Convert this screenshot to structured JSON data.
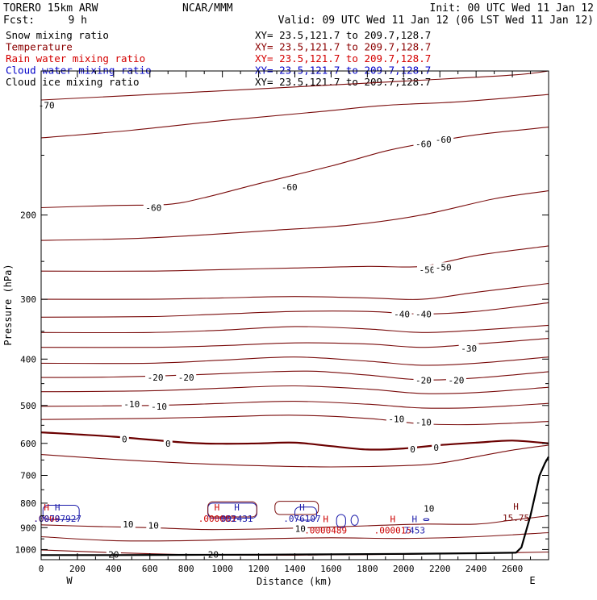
{
  "header": {
    "model": "TORERO  15km ARW",
    "center": "NCAR/MMM",
    "init": "Init: 00 UTC Wed 11 Jan 12",
    "fcst_label": "Fcst:",
    "fcst_value": "9 h",
    "valid": "Valid: 09 UTC Wed 11 Jan 12 (06 LST Wed 11 Jan 12)"
  },
  "legend": [
    {
      "name": "Snow mixing ratio",
      "xy": "XY=  23.5,121.7 to 209.7,128.7",
      "color": "#000000"
    },
    {
      "name": "Temperature",
      "xy": "XY=  23.5,121.7 to 209.7,128.7",
      "color": "#8b0000"
    },
    {
      "name": "Rain water mixing ratio",
      "xy": "XY=  23.5,121.7 to 209.7,128.7",
      "color": "#d40000"
    },
    {
      "name": "Cloud water mixing ratio",
      "xy": "XY=  23.5,121.7 to 209.7,128.7",
      "color": "#0000c8"
    },
    {
      "name": "Cloud ice mixing ratio",
      "xy": "XY=  23.5,121.7 to 209.7,128.7",
      "color": "#000000"
    }
  ],
  "colors": {
    "temperature": "#7a0c0c",
    "temperature_zero": "#6b0000",
    "rain": "#cc0000",
    "cloud_water": "#1a1aaa",
    "terrain": "#000000"
  },
  "chart_data": {
    "type": "contour_cross_section",
    "xlabel": "Distance (km)",
    "ylabel": "Pressure (hPa)",
    "xlim": [
      0,
      2800
    ],
    "ylim": [
      1050,
      100
    ],
    "x_ticks": [
      0,
      200,
      400,
      600,
      800,
      1000,
      1200,
      1400,
      1600,
      1800,
      2000,
      2200,
      2400,
      2600
    ],
    "y_ticks": [
      200,
      300,
      400,
      500,
      600,
      700,
      800,
      900,
      1000
    ],
    "endpoints": {
      "left": "W",
      "right": "E"
    },
    "temperature_contours": [
      {
        "level": -70,
        "points": [
          [
            0,
            115
          ],
          [
            600,
            112
          ],
          [
            1400,
            108
          ],
          [
            2000,
            105
          ],
          [
            2600,
            102
          ],
          [
            2800,
            100
          ]
        ]
      },
      {
        "level": -65,
        "points": [
          [
            0,
            138
          ],
          [
            500,
            133
          ],
          [
            1000,
            127
          ],
          [
            1500,
            122
          ],
          [
            1900,
            118
          ],
          [
            2300,
            116
          ],
          [
            2800,
            112
          ]
        ]
      },
      {
        "level": -60,
        "points": [
          [
            0,
            193
          ],
          [
            400,
            191
          ],
          [
            700,
            190
          ],
          [
            900,
            184
          ],
          [
            1200,
            172
          ],
          [
            1600,
            158
          ],
          [
            1900,
            147
          ],
          [
            2100,
            142
          ],
          [
            2400,
            136
          ],
          [
            2800,
            131
          ]
        ]
      },
      {
        "level": -55,
        "points": [
          [
            0,
            226
          ],
          [
            500,
            224
          ],
          [
            900,
            220
          ],
          [
            1300,
            215
          ],
          [
            1700,
            210
          ],
          [
            2100,
            200
          ],
          [
            2500,
            185
          ],
          [
            2800,
            178
          ]
        ]
      },
      {
        "level": -50,
        "points": [
          [
            0,
            262
          ],
          [
            600,
            262
          ],
          [
            1000,
            260
          ],
          [
            1400,
            258
          ],
          [
            1800,
            256
          ],
          [
            2100,
            256
          ],
          [
            2400,
            243
          ],
          [
            2800,
            232
          ]
        ]
      },
      {
        "level": -45,
        "points": [
          [
            0,
            300
          ],
          [
            600,
            300
          ],
          [
            1000,
            298
          ],
          [
            1400,
            296
          ],
          [
            1800,
            298
          ],
          [
            2100,
            300
          ],
          [
            2400,
            290
          ],
          [
            2800,
            278
          ]
        ]
      },
      {
        "level": -40,
        "points": [
          [
            0,
            327
          ],
          [
            600,
            326
          ],
          [
            1000,
            322
          ],
          [
            1400,
            318
          ],
          [
            1800,
            318
          ],
          [
            2100,
            322
          ],
          [
            2400,
            318
          ],
          [
            2800,
            305
          ]
        ]
      },
      {
        "level": -35,
        "points": [
          [
            0,
            352
          ],
          [
            600,
            352
          ],
          [
            1000,
            348
          ],
          [
            1400,
            342
          ],
          [
            1800,
            346
          ],
          [
            2100,
            352
          ],
          [
            2400,
            348
          ],
          [
            2800,
            340
          ]
        ]
      },
      {
        "level": -30,
        "points": [
          [
            0,
            378
          ],
          [
            600,
            378
          ],
          [
            1000,
            375
          ],
          [
            1400,
            370
          ],
          [
            1800,
            372
          ],
          [
            2100,
            378
          ],
          [
            2400,
            372
          ],
          [
            2800,
            362
          ]
        ]
      },
      {
        "level": -25,
        "points": [
          [
            0,
            408
          ],
          [
            600,
            408
          ],
          [
            1000,
            402
          ],
          [
            1400,
            396
          ],
          [
            1800,
            404
          ],
          [
            2100,
            412
          ],
          [
            2400,
            408
          ],
          [
            2800,
            396
          ]
        ]
      },
      {
        "level": -20,
        "points": [
          [
            0,
            437
          ],
          [
            400,
            436
          ],
          [
            800,
            432
          ],
          [
            1200,
            426
          ],
          [
            1500,
            424
          ],
          [
            1800,
            432
          ],
          [
            2100,
            442
          ],
          [
            2400,
            438
          ],
          [
            2800,
            425
          ]
        ]
      },
      {
        "level": -15,
        "points": [
          [
            0,
            468
          ],
          [
            600,
            466
          ],
          [
            1000,
            460
          ],
          [
            1400,
            455
          ],
          [
            1800,
            462
          ],
          [
            2100,
            472
          ],
          [
            2400,
            470
          ],
          [
            2800,
            458
          ]
        ]
      },
      {
        "level": -10,
        "points": [
          [
            0,
            502
          ],
          [
            600,
            500
          ],
          [
            1000,
            495
          ],
          [
            1400,
            490
          ],
          [
            1800,
            497
          ],
          [
            2100,
            506
          ],
          [
            2400,
            505
          ],
          [
            2800,
            495
          ]
        ]
      },
      {
        "level": -5,
        "points": [
          [
            0,
            535
          ],
          [
            600,
            532
          ],
          [
            1000,
            528
          ],
          [
            1400,
            524
          ],
          [
            1800,
            532
          ],
          [
            2100,
            546
          ],
          [
            2400,
            548
          ],
          [
            2800,
            540
          ]
        ]
      },
      {
        "level": 0,
        "points": [
          [
            0,
            569
          ],
          [
            400,
            581
          ],
          [
            800,
            598
          ],
          [
            1000,
            601
          ],
          [
            1200,
            600
          ],
          [
            1400,
            598
          ],
          [
            1600,
            608
          ],
          [
            1800,
            618
          ],
          [
            2000,
            615
          ],
          [
            2200,
            605
          ],
          [
            2400,
            598
          ],
          [
            2600,
            592
          ],
          [
            2800,
            600
          ]
        ]
      },
      {
        "level": 5,
        "points": [
          [
            0,
            633
          ],
          [
            400,
            648
          ],
          [
            800,
            660
          ],
          [
            1200,
            668
          ],
          [
            1600,
            672
          ],
          [
            2000,
            668
          ],
          [
            2200,
            660
          ],
          [
            2400,
            640
          ],
          [
            2600,
            620
          ],
          [
            2800,
            605
          ]
        ]
      },
      {
        "level": 10,
        "points": [
          [
            0,
            888
          ],
          [
            300,
            895
          ],
          [
            600,
            900
          ],
          [
            900,
            908
          ],
          [
            1200,
            906
          ],
          [
            1500,
            900
          ],
          [
            1800,
            892
          ],
          [
            2100,
            885
          ],
          [
            2400,
            885
          ],
          [
            2580,
            870
          ],
          [
            2800,
            850
          ]
        ]
      },
      {
        "level": 15,
        "points": [
          [
            0,
            940
          ],
          [
            400,
            958
          ],
          [
            800,
            958
          ],
          [
            1200,
            950
          ],
          [
            1600,
            945
          ],
          [
            2000,
            948
          ],
          [
            2400,
            940
          ],
          [
            2800,
            922
          ]
        ]
      },
      {
        "level": 20,
        "points": [
          [
            0,
            1002
          ],
          [
            400,
            1015
          ],
          [
            800,
            1025
          ],
          [
            1200,
            1028
          ],
          [
            1600,
            1026
          ],
          [
            2000,
            1023
          ],
          [
            2400,
            1018
          ],
          [
            2800,
            1012
          ]
        ]
      }
    ],
    "contour_labels": [
      {
        "text": "-70",
        "x": 30,
        "y": 118
      },
      {
        "text": "-60",
        "x": 2110,
        "y": 142
      },
      {
        "text": "-60",
        "x": 2220,
        "y": 139
      },
      {
        "text": "-60",
        "x": 620,
        "y": 193
      },
      {
        "text": "-60",
        "x": 1370,
        "y": 175
      },
      {
        "text": "-50",
        "x": 2130,
        "y": 260
      },
      {
        "text": "-50",
        "x": 2220,
        "y": 257
      },
      {
        "text": "-40",
        "x": 1990,
        "y": 322
      },
      {
        "text": "-40",
        "x": 2110,
        "y": 322
      },
      {
        "text": "-30",
        "x": 2360,
        "y": 380
      },
      {
        "text": "-20",
        "x": 630,
        "y": 437
      },
      {
        "text": "-20",
        "x": 800,
        "y": 437
      },
      {
        "text": "-20",
        "x": 2110,
        "y": 443
      },
      {
        "text": "-20",
        "x": 2290,
        "y": 443
      },
      {
        "text": "-10",
        "x": 500,
        "y": 497
      },
      {
        "text": "-10",
        "x": 650,
        "y": 502
      },
      {
        "text": "-10",
        "x": 1960,
        "y": 534
      },
      {
        "text": "-10",
        "x": 2110,
        "y": 542
      },
      {
        "text": "0",
        "x": 460,
        "y": 588
      },
      {
        "text": "0",
        "x": 700,
        "y": 600
      },
      {
        "text": "0",
        "x": 2050,
        "y": 617
      },
      {
        "text": "0",
        "x": 2180,
        "y": 612
      },
      {
        "text": "10",
        "x": 2140,
        "y": 820
      },
      {
        "text": "10",
        "x": 480,
        "y": 886
      },
      {
        "text": "10",
        "x": 620,
        "y": 891
      },
      {
        "text": "10",
        "x": 1430,
        "y": 905
      },
      {
        "text": "20",
        "x": 400,
        "y": 1023
      },
      {
        "text": "20",
        "x": 950,
        "y": 1023
      }
    ],
    "extrema": [
      {
        "type": "H",
        "x": 30,
        "y": 828,
        "color": "rain",
        "value": ".0000"
      },
      {
        "type": "H",
        "x": 90,
        "y": 828,
        "color": "cloud_water",
        "value": ".00797927"
      },
      {
        "type": "H",
        "x": 970,
        "y": 828,
        "color": "rain",
        "value": ".000083"
      },
      {
        "type": "H",
        "x": 1080,
        "y": 828,
        "color": "cloud_water",
        "value": "002431"
      },
      {
        "type": "H",
        "x": 1440,
        "y": 828,
        "color": "cloud_water",
        "value": ".076107"
      },
      {
        "type": "H",
        "x": 1570,
        "y": 877,
        "color": "rain",
        "value": ".0000489"
      },
      {
        "type": "H",
        "x": 1940,
        "y": 877,
        "color": "rain",
        "value": ".000015"
      },
      {
        "type": "H",
        "x": 2060,
        "y": 877,
        "color": "cloud_water",
        "value": "7453"
      },
      {
        "type": "H",
        "x": 2620,
        "y": 825,
        "color": "temperature",
        "value": "15.75"
      }
    ],
    "terrain": [
      [
        0,
        1027
      ],
      [
        400,
        1027
      ],
      [
        800,
        1026
      ],
      [
        1200,
        1025
      ],
      [
        1600,
        1023
      ],
      [
        2000,
        1021
      ],
      [
        2400,
        1018
      ],
      [
        2620,
        1015
      ],
      [
        2650,
        990
      ],
      [
        2700,
        850
      ],
      [
        2750,
        700
      ],
      [
        2780,
        660
      ],
      [
        2800,
        640
      ]
    ]
  }
}
